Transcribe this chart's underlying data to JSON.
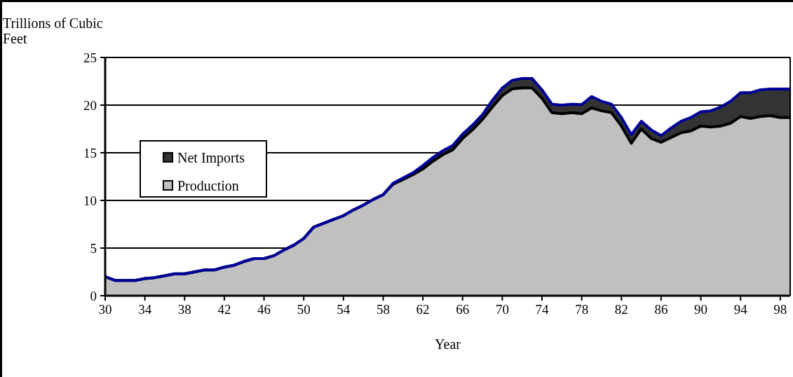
{
  "chart_data": {
    "type": "area",
    "stacked": true,
    "ylabel": "Trillions of Cubic Feet",
    "xlabel": "Year",
    "x": [
      30,
      31,
      32,
      33,
      34,
      35,
      36,
      37,
      38,
      39,
      40,
      41,
      42,
      43,
      44,
      45,
      46,
      47,
      48,
      49,
      50,
      51,
      52,
      53,
      54,
      55,
      56,
      57,
      58,
      59,
      60,
      61,
      62,
      63,
      64,
      65,
      66,
      67,
      68,
      69,
      70,
      71,
      72,
      73,
      74,
      75,
      76,
      77,
      78,
      79,
      80,
      81,
      82,
      83,
      84,
      85,
      86,
      87,
      88,
      89,
      90,
      91,
      92,
      93,
      94,
      95,
      96,
      97,
      98,
      99
    ],
    "series": [
      {
        "name": "Production",
        "color": "#c0c0c0",
        "values": [
          2.0,
          1.6,
          1.6,
          1.6,
          1.8,
          1.9,
          2.1,
          2.3,
          2.3,
          2.5,
          2.7,
          2.7,
          3.0,
          3.2,
          3.6,
          3.9,
          3.9,
          4.2,
          4.8,
          5.3,
          6.0,
          7.2,
          7.6,
          8.0,
          8.4,
          9.0,
          9.5,
          10.1,
          10.6,
          11.7,
          12.2,
          12.7,
          13.3,
          14.1,
          14.8,
          15.3,
          16.5,
          17.4,
          18.5,
          19.8,
          21.0,
          21.7,
          21.8,
          21.8,
          20.7,
          19.2,
          19.1,
          19.2,
          19.1,
          19.7,
          19.4,
          19.2,
          17.8,
          16.0,
          17.5,
          16.5,
          16.1,
          16.6,
          17.1,
          17.3,
          17.8,
          17.7,
          17.8,
          18.1,
          18.8,
          18.6,
          18.8,
          18.9,
          18.7,
          18.7
        ]
      },
      {
        "name": "Net Imports",
        "color": "#333333",
        "values": [
          0,
          0,
          0,
          0,
          0,
          0,
          0,
          0,
          0,
          0,
          0,
          0,
          0,
          0,
          0,
          0,
          0,
          0,
          0,
          0,
          0,
          0,
          0,
          0,
          0,
          0,
          0,
          0,
          0,
          0.1,
          0.15,
          0.2,
          0.35,
          0.4,
          0.4,
          0.45,
          0.45,
          0.5,
          0.5,
          0.7,
          0.8,
          0.9,
          1.0,
          1.0,
          0.9,
          0.9,
          0.9,
          0.9,
          0.95,
          1.2,
          1.0,
          0.9,
          0.9,
          0.9,
          0.8,
          0.9,
          0.7,
          1.0,
          1.2,
          1.4,
          1.5,
          1.7,
          2.0,
          2.3,
          2.5,
          2.7,
          2.8,
          2.8,
          3.0,
          3.0
        ]
      }
    ],
    "xlim": [
      30,
      99
    ],
    "xticks": [
      30,
      34,
      38,
      42,
      46,
      50,
      54,
      58,
      62,
      66,
      70,
      74,
      78,
      82,
      86,
      90,
      94,
      98
    ],
    "ylim": [
      0,
      25
    ],
    "yticks": [
      0,
      5,
      10,
      15,
      20,
      25
    ],
    "grid": "y",
    "legend": "left"
  }
}
